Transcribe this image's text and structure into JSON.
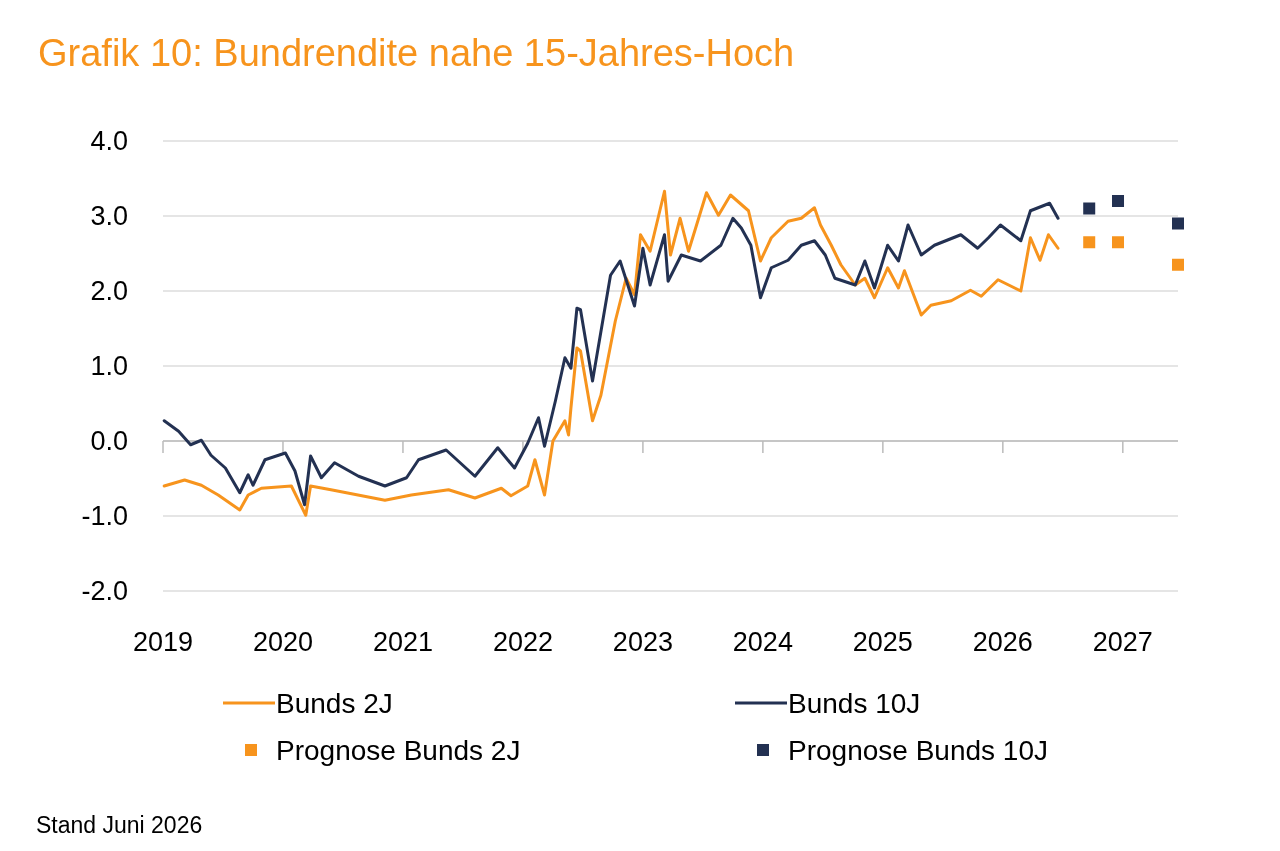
{
  "chart_data": {
    "type": "line",
    "title": "Grafik 10: Bundrendite nahe 15-Jahres-Hoch",
    "annotations": [
      "Stand Juni 2026"
    ],
    "xlim": [
      2019,
      2027.46
    ],
    "xticks": [
      2019,
      2020,
      2021,
      2022,
      2023,
      2024,
      2025,
      2026,
      2027
    ],
    "ylim": [
      -2,
      4
    ],
    "yticks": [
      {
        "value": -2,
        "label": "-2.0"
      },
      {
        "value": -1,
        "label": "-1.0"
      },
      {
        "value": 0,
        "label": "0.0"
      },
      {
        "value": 1,
        "label": "1.0"
      },
      {
        "value": 2,
        "label": "2.0"
      },
      {
        "value": 3,
        "label": "3.0"
      },
      {
        "value": 4,
        "label": "4.0"
      }
    ],
    "grid": "y",
    "legend": "bottom",
    "series": [
      {
        "name": "Bunds 2J",
        "marker": "none",
        "color": "#f7941d",
        "x": [
          2019.01,
          2019.18,
          2019.32,
          2019.46,
          2019.64,
          2019.71,
          2019.82,
          2020.07,
          2020.19,
          2020.23,
          2020.4,
          2020.85,
          2021.07,
          2021.38,
          2021.6,
          2021.82,
          2021.9,
          2022.04,
          2022.1,
          2022.18,
          2022.25,
          2022.35,
          2022.38,
          2022.4,
          2022.45,
          2022.48,
          2022.58,
          2022.65,
          2022.77,
          2022.86,
          2022.93,
          2022.98,
          2023.06,
          2023.18,
          2023.23,
          2023.31,
          2023.38,
          2023.53,
          2023.63,
          2023.73,
          2023.88,
          2023.98,
          2024.07,
          2024.21,
          2024.32,
          2024.43,
          2024.48,
          2024.57,
          2024.65,
          2024.77,
          2024.85,
          2024.93,
          2025.04,
          2025.13,
          2025.18,
          2025.32,
          2025.4,
          2025.57,
          2025.73,
          2025.82,
          2025.96,
          2026.15,
          2026.23,
          2026.31,
          2026.38,
          2026.46
        ],
        "values": [
          -0.6,
          -0.52,
          -0.59,
          -0.72,
          -0.92,
          -0.72,
          -0.63,
          -0.6,
          -0.99,
          -0.6,
          -0.65,
          -0.79,
          -0.72,
          -0.65,
          -0.76,
          -0.63,
          -0.73,
          -0.6,
          -0.25,
          -0.72,
          0.0,
          0.27,
          0.08,
          0.44,
          1.24,
          1.2,
          0.27,
          0.61,
          1.6,
          2.17,
          1.95,
          2.75,
          2.53,
          3.33,
          2.48,
          2.97,
          2.53,
          3.31,
          3.01,
          3.28,
          3.07,
          2.4,
          2.71,
          2.93,
          2.97,
          3.11,
          2.88,
          2.61,
          2.35,
          2.08,
          2.17,
          1.91,
          2.31,
          2.04,
          2.27,
          1.68,
          1.81,
          1.87,
          2.01,
          1.93,
          2.15,
          2.0,
          2.71,
          2.41,
          2.75,
          2.57
        ]
      },
      {
        "name": "Bunds 10J",
        "marker": "none",
        "color": "#233152",
        "x": [
          2019.01,
          2019.13,
          2019.23,
          2019.32,
          2019.4,
          2019.52,
          2019.64,
          2019.71,
          2019.75,
          2019.85,
          2020.02,
          2020.1,
          2020.18,
          2020.23,
          2020.32,
          2020.43,
          2020.63,
          2020.85,
          2021.03,
          2021.13,
          2021.36,
          2021.6,
          2021.79,
          2021.93,
          2022.04,
          2022.13,
          2022.18,
          2022.27,
          2022.35,
          2022.4,
          2022.45,
          2022.48,
          2022.58,
          2022.73,
          2022.81,
          2022.93,
          2023.0,
          2023.06,
          2023.18,
          2023.21,
          2023.32,
          2023.48,
          2023.65,
          2023.75,
          2023.82,
          2023.9,
          2023.98,
          2024.07,
          2024.21,
          2024.32,
          2024.43,
          2024.52,
          2024.6,
          2024.77,
          2024.85,
          2024.93,
          2025.04,
          2025.13,
          2025.21,
          2025.32,
          2025.43,
          2025.65,
          2025.79,
          2025.88,
          2025.98,
          2026.15,
          2026.23,
          2026.39,
          2026.46
        ],
        "values": [
          0.27,
          0.13,
          -0.05,
          0.01,
          -0.19,
          -0.36,
          -0.69,
          -0.45,
          -0.59,
          -0.25,
          -0.16,
          -0.4,
          -0.85,
          -0.2,
          -0.49,
          -0.29,
          -0.47,
          -0.6,
          -0.49,
          -0.25,
          -0.12,
          -0.47,
          -0.09,
          -0.36,
          -0.03,
          0.31,
          -0.07,
          0.53,
          1.11,
          0.97,
          1.77,
          1.75,
          0.8,
          2.21,
          2.4,
          1.8,
          2.57,
          2.08,
          2.75,
          2.13,
          2.48,
          2.4,
          2.61,
          2.97,
          2.84,
          2.61,
          1.91,
          2.31,
          2.41,
          2.61,
          2.67,
          2.48,
          2.17,
          2.08,
          2.4,
          2.04,
          2.61,
          2.4,
          2.88,
          2.48,
          2.61,
          2.75,
          2.57,
          2.71,
          2.88,
          2.67,
          3.07,
          3.17,
          2.97
        ]
      },
      {
        "name": "Prognose Bunds 2J",
        "type": "scatter",
        "marker": "square",
        "color": "#f7941d",
        "x": [
          2026.72,
          2026.96,
          2027.46
        ],
        "values": [
          2.65,
          2.65,
          2.35
        ]
      },
      {
        "name": "Prognose Bunds 10J",
        "type": "scatter",
        "marker": "square",
        "color": "#233152",
        "x": [
          2026.72,
          2026.96,
          2027.46
        ],
        "values": [
          3.1,
          3.2,
          2.9
        ]
      }
    ]
  }
}
